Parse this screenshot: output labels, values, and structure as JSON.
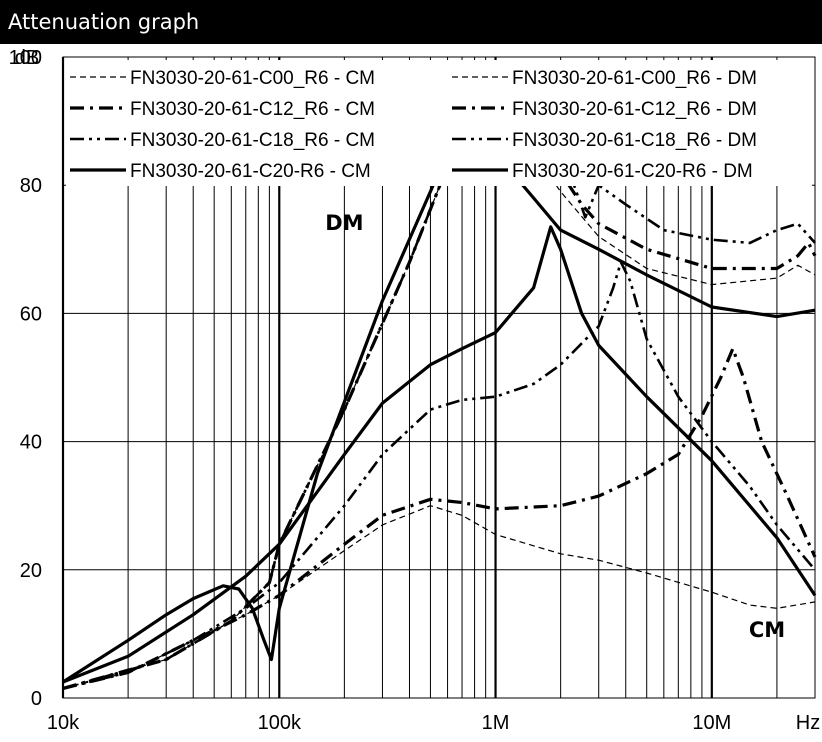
{
  "header": {
    "title": "Attenuation graph"
  },
  "chart_data": {
    "type": "line",
    "xscale": "log",
    "xlim": [
      10000,
      30000000
    ],
    "ylim": [
      0,
      100
    ],
    "ylabel": "dB",
    "xlabel": "Hz",
    "grid": true,
    "legend_position": "top",
    "x_ticks": [
      {
        "value": 10000,
        "label": "10k"
      },
      {
        "value": 100000,
        "label": "100k"
      },
      {
        "value": 1000000,
        "label": "1M"
      },
      {
        "value": 10000000,
        "label": "10M"
      }
    ],
    "y_ticks": [
      0,
      20,
      40,
      60,
      80,
      100
    ],
    "annotations": [
      {
        "text": "DM",
        "x": 200000,
        "y": 73
      },
      {
        "text": "CM",
        "x": 18000000,
        "y": 9.5
      }
    ],
    "series": [
      {
        "name": "FN3030-20-61-C00_R6 - CM",
        "style": "dashed",
        "points": [
          [
            10000,
            1.5
          ],
          [
            20000,
            4
          ],
          [
            40000,
            9
          ],
          [
            70000,
            13
          ],
          [
            100000,
            16
          ],
          [
            200000,
            23
          ],
          [
            300000,
            27
          ],
          [
            500000,
            30
          ],
          [
            700000,
            28.5
          ],
          [
            1000000,
            25.5
          ],
          [
            2000000,
            22.5
          ],
          [
            3000000,
            21.5
          ],
          [
            5000000,
            19.5
          ],
          [
            10000000,
            16.5
          ],
          [
            15000000,
            14.5
          ],
          [
            20000000,
            14
          ],
          [
            30000000,
            15
          ]
        ]
      },
      {
        "name": "FN3030-20-61-C00_R6 - DM",
        "style": "dashed",
        "points": [
          [
            10000,
            1.5
          ],
          [
            30000,
            6
          ],
          [
            60000,
            12
          ],
          [
            90000,
            18
          ],
          [
            100000,
            24
          ],
          [
            200000,
            45
          ],
          [
            400000,
            68
          ],
          [
            600000,
            83
          ],
          [
            800000,
            89
          ],
          [
            1000000,
            90
          ],
          [
            1300000,
            88
          ],
          [
            2000000,
            79
          ],
          [
            3000000,
            72
          ],
          [
            5000000,
            67
          ],
          [
            10000000,
            64.5
          ],
          [
            20000000,
            65.5
          ],
          [
            25000000,
            67.5
          ],
          [
            30000000,
            66
          ]
        ]
      },
      {
        "name": "FN3030-20-61-C12_R6 - CM",
        "style": "dashdot",
        "points": [
          [
            10000,
            1.5
          ],
          [
            20000,
            4
          ],
          [
            40000,
            9
          ],
          [
            70000,
            13
          ],
          [
            100000,
            16
          ],
          [
            200000,
            24
          ],
          [
            300000,
            28.5
          ],
          [
            500000,
            31
          ],
          [
            700000,
            30.5
          ],
          [
            1000000,
            29.5
          ],
          [
            2000000,
            30
          ],
          [
            3000000,
            31.5
          ],
          [
            5000000,
            35
          ],
          [
            7000000,
            38
          ],
          [
            9000000,
            44
          ],
          [
            11000000,
            50
          ],
          [
            12500000,
            54.5
          ],
          [
            14000000,
            50
          ],
          [
            17000000,
            40
          ],
          [
            22000000,
            32
          ],
          [
            30000000,
            22
          ]
        ]
      },
      {
        "name": "FN3030-20-61-C12_R6 - DM",
        "style": "dashdot",
        "points": [
          [
            10000,
            1.5
          ],
          [
            30000,
            6
          ],
          [
            60000,
            12
          ],
          [
            90000,
            18
          ],
          [
            100000,
            24
          ],
          [
            200000,
            45
          ],
          [
            400000,
            68
          ],
          [
            600000,
            83
          ],
          [
            800000,
            89.5
          ],
          [
            1000000,
            91.5
          ],
          [
            1300000,
            90
          ],
          [
            2000000,
            82
          ],
          [
            2500000,
            77
          ],
          [
            3000000,
            74
          ],
          [
            5000000,
            70
          ],
          [
            10000000,
            67
          ],
          [
            20000000,
            67
          ],
          [
            25000000,
            69
          ],
          [
            28000000,
            71
          ],
          [
            30000000,
            69
          ]
        ]
      },
      {
        "name": "FN3030-20-61-C18_R6 - CM",
        "style": "dashdotdot",
        "points": [
          [
            10000,
            1.5
          ],
          [
            20000,
            4
          ],
          [
            40000,
            9
          ],
          [
            70000,
            14
          ],
          [
            100000,
            18
          ],
          [
            200000,
            30
          ],
          [
            300000,
            38
          ],
          [
            500000,
            45
          ],
          [
            700000,
            46.5
          ],
          [
            1000000,
            47
          ],
          [
            1500000,
            49
          ],
          [
            2000000,
            52
          ],
          [
            3000000,
            58
          ],
          [
            3500000,
            64
          ],
          [
            3800000,
            68
          ],
          [
            4200000,
            65
          ],
          [
            5000000,
            56
          ],
          [
            7000000,
            47
          ],
          [
            10000000,
            40
          ],
          [
            15000000,
            33
          ],
          [
            20000000,
            27
          ],
          [
            30000000,
            20
          ]
        ]
      },
      {
        "name": "FN3030-20-61-C18_R6 - DM",
        "style": "dashdotdot",
        "points": [
          [
            10000,
            1.5
          ],
          [
            30000,
            6
          ],
          [
            60000,
            12
          ],
          [
            90000,
            18
          ],
          [
            100000,
            24
          ],
          [
            200000,
            45
          ],
          [
            400000,
            68
          ],
          [
            600000,
            83
          ],
          [
            800000,
            89
          ],
          [
            1000000,
            91
          ],
          [
            1400000,
            92
          ],
          [
            2000000,
            86
          ],
          [
            2600000,
            75
          ],
          [
            3000000,
            80
          ],
          [
            4000000,
            77
          ],
          [
            6000000,
            73
          ],
          [
            10000000,
            71.5
          ],
          [
            15000000,
            71
          ],
          [
            20000000,
            73
          ],
          [
            25000000,
            74
          ],
          [
            30000000,
            71
          ]
        ]
      },
      {
        "name": "FN3030-20-61-C20-R6 - CM",
        "style": "solid",
        "points": [
          [
            10000,
            2.5
          ],
          [
            20000,
            6.5
          ],
          [
            40000,
            13
          ],
          [
            70000,
            19
          ],
          [
            100000,
            24
          ],
          [
            200000,
            38
          ],
          [
            300000,
            46
          ],
          [
            500000,
            52
          ],
          [
            700000,
            54.5
          ],
          [
            1000000,
            57
          ],
          [
            1500000,
            64
          ],
          [
            1800000,
            73.5
          ],
          [
            2000000,
            70
          ],
          [
            2500000,
            60
          ],
          [
            3000000,
            55
          ],
          [
            5000000,
            47
          ],
          [
            10000000,
            37
          ],
          [
            20000000,
            25
          ],
          [
            30000000,
            16
          ]
        ]
      },
      {
        "name": "FN3030-20-61-C20-R6 - DM",
        "style": "solid",
        "points": [
          [
            10000,
            2.5
          ],
          [
            20000,
            9
          ],
          [
            30000,
            13
          ],
          [
            40000,
            15.5
          ],
          [
            55000,
            17.5
          ],
          [
            65000,
            17
          ],
          [
            75000,
            14
          ],
          [
            85000,
            9
          ],
          [
            92000,
            6
          ],
          [
            100000,
            14
          ],
          [
            150000,
            35
          ],
          [
            300000,
            62
          ],
          [
            500000,
            79
          ],
          [
            700000,
            90.5
          ],
          [
            800000,
            89.5
          ],
          [
            1000000,
            85
          ],
          [
            1500000,
            78
          ],
          [
            2000000,
            73
          ],
          [
            3000000,
            70
          ],
          [
            5000000,
            66
          ],
          [
            10000000,
            61
          ],
          [
            20000000,
            59.5
          ],
          [
            30000000,
            60.5
          ]
        ]
      }
    ]
  }
}
